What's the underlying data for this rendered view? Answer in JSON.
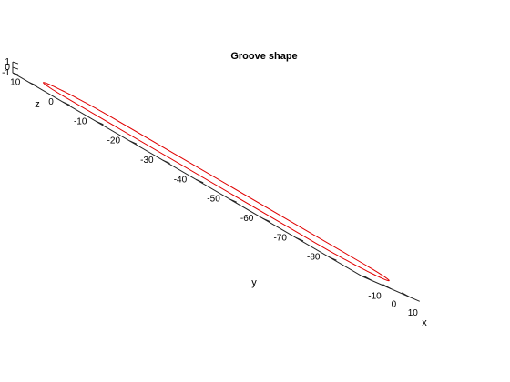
{
  "chart_data": {
    "type": "line",
    "title": "Groove shape",
    "xlabel": "x",
    "ylabel": "y",
    "zlabel": "z",
    "xlim": [
      -15,
      15
    ],
    "ylim": [
      -90,
      15
    ],
    "zlim": [
      -1,
      1
    ],
    "x_ticks": [
      -10,
      0,
      10
    ],
    "y_ticks": [
      10,
      0,
      -10,
      -20,
      -30,
      -40,
      -50,
      -60,
      -70,
      -80
    ],
    "z_ticks": [
      -1,
      0,
      1
    ],
    "grid": false,
    "series": [
      {
        "color": "#e00000",
        "shape": "stadium",
        "half_width": 12.5,
        "arc_center_y_top": 0,
        "arc_center_y_bottom": -75,
        "z": 0
      }
    ]
  }
}
